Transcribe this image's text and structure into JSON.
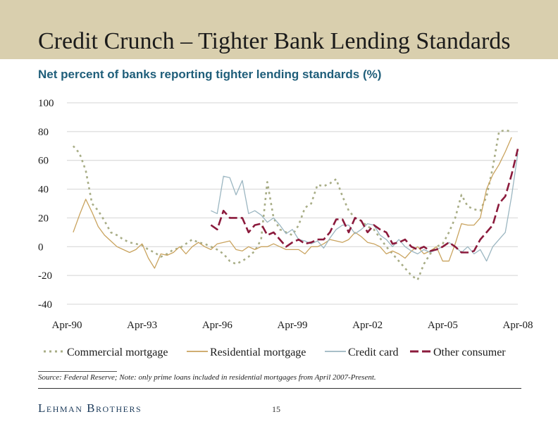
{
  "slide": {
    "title": "Credit Crunch – Tighter Bank Lending Standards",
    "subtitle": "Net percent of banks reporting tighter lending standards (%)",
    "source": "Source: Federal Reserve; Note: only prime loans included in residential mortgages from April 2007-Present.",
    "brand": "Lehman Brothers",
    "page_number": "15"
  },
  "colors": {
    "header_band": "#d9cfae",
    "commercial": "#a8ad86",
    "residential": "#c9a35e",
    "credit_card": "#9bb6c1",
    "other_consumer": "#8b1a3c"
  },
  "chart_data": {
    "type": "line",
    "title": "",
    "xlabel": "",
    "ylabel": "",
    "ylim": [
      -40,
      100
    ],
    "xlim": [
      "Apr-90",
      "Apr-08"
    ],
    "yticks": [
      "100",
      "80",
      "60",
      "40",
      "20",
      "0",
      "-20",
      "-40"
    ],
    "xticks": [
      "Apr-90",
      "Apr-93",
      "Apr-96",
      "Apr-99",
      "Apr-02",
      "Apr-05",
      "Apr-08"
    ],
    "grid": true,
    "legend_position": "bottom",
    "series": [
      {
        "name": "Commercial mortgage",
        "color": "#a8ad86",
        "dash": "dotted",
        "points": [
          [
            "Jul-90",
            70
          ],
          [
            "Oct-90",
            65
          ],
          [
            "Jan-91",
            53
          ],
          [
            "Apr-91",
            30
          ],
          [
            "Jul-91",
            25
          ],
          [
            "Oct-91",
            18
          ],
          [
            "Jan-92",
            10
          ],
          [
            "Apr-92",
            8
          ],
          [
            "Jul-92",
            5
          ],
          [
            "Oct-92",
            3
          ],
          [
            "Jan-93",
            2
          ],
          [
            "Apr-93",
            1
          ],
          [
            "Jul-93",
            -2
          ],
          [
            "Oct-93",
            -4
          ],
          [
            "Jan-94",
            -7
          ],
          [
            "Apr-94",
            -5
          ],
          [
            "Jul-94",
            -2
          ],
          [
            "Oct-94",
            -1
          ],
          [
            "Jan-95",
            2
          ],
          [
            "Apr-95",
            5
          ],
          [
            "Jul-95",
            3
          ],
          [
            "Oct-95",
            2
          ],
          [
            "Jan-96",
            0
          ],
          [
            "Apr-96",
            -2
          ],
          [
            "Jul-96",
            -5
          ],
          [
            "Oct-96",
            -10
          ],
          [
            "Jan-97",
            -12
          ],
          [
            "Apr-97",
            -10
          ],
          [
            "Jul-97",
            -7
          ],
          [
            "Oct-97",
            -3
          ],
          [
            "Jan-98",
            5
          ],
          [
            "Apr-98",
            45
          ],
          [
            "Jul-98",
            20
          ],
          [
            "Oct-98",
            12
          ],
          [
            "Jan-99",
            10
          ],
          [
            "Apr-99",
            8
          ],
          [
            "Jul-99",
            15
          ],
          [
            "Oct-99",
            27
          ],
          [
            "Jan-00",
            30
          ],
          [
            "Apr-00",
            43
          ],
          [
            "Jul-00",
            42
          ],
          [
            "Oct-00",
            44
          ],
          [
            "Jan-01",
            47
          ],
          [
            "Apr-01",
            35
          ],
          [
            "Jul-01",
            25
          ],
          [
            "Oct-01",
            20
          ],
          [
            "Jan-02",
            18
          ],
          [
            "Apr-02",
            14
          ],
          [
            "Jul-02",
            12
          ],
          [
            "Oct-02",
            6
          ],
          [
            "Jan-03",
            0
          ],
          [
            "Apr-03",
            -5
          ],
          [
            "Jul-03",
            -10
          ],
          [
            "Oct-03",
            -15
          ],
          [
            "Jan-04",
            -20
          ],
          [
            "Apr-04",
            -23
          ],
          [
            "Jul-04",
            -12
          ],
          [
            "Oct-04",
            -5
          ],
          [
            "Jan-05",
            0
          ],
          [
            "Apr-05",
            2
          ],
          [
            "Jul-05",
            10
          ],
          [
            "Oct-05",
            20
          ],
          [
            "Jan-06",
            36
          ],
          [
            "Apr-06",
            28
          ],
          [
            "Jul-06",
            26
          ],
          [
            "Oct-06",
            25
          ],
          [
            "Jan-07",
            35
          ],
          [
            "Apr-07",
            55
          ],
          [
            "Jul-07",
            80
          ],
          [
            "Oct-07",
            81
          ],
          [
            "Jan-08",
            80
          ]
        ]
      },
      {
        "name": "Residential mortgage",
        "color": "#c9a35e",
        "dash": "solid",
        "points": [
          [
            "Jul-90",
            10
          ],
          [
            "Oct-90",
            22
          ],
          [
            "Jan-91",
            33
          ],
          [
            "Apr-91",
            24
          ],
          [
            "Jul-91",
            14
          ],
          [
            "Oct-91",
            8
          ],
          [
            "Jan-92",
            4
          ],
          [
            "Apr-92",
            0
          ],
          [
            "Jul-92",
            -2
          ],
          [
            "Oct-92",
            -4
          ],
          [
            "Jan-93",
            -2
          ],
          [
            "Apr-93",
            2
          ],
          [
            "Jul-93",
            -8
          ],
          [
            "Oct-93",
            -15
          ],
          [
            "Jan-94",
            -5
          ],
          [
            "Apr-94",
            -6
          ],
          [
            "Jul-94",
            -4
          ],
          [
            "Oct-94",
            0
          ],
          [
            "Jan-95",
            -5
          ],
          [
            "Apr-95",
            0
          ],
          [
            "Jul-95",
            3
          ],
          [
            "Oct-95",
            0
          ],
          [
            "Jan-96",
            -2
          ],
          [
            "Apr-96",
            2
          ],
          [
            "Jul-96",
            3
          ],
          [
            "Oct-96",
            4
          ],
          [
            "Jan-97",
            -2
          ],
          [
            "Apr-97",
            -3
          ],
          [
            "Jul-97",
            0
          ],
          [
            "Oct-97",
            -2
          ],
          [
            "Jan-98",
            0
          ],
          [
            "Apr-98",
            0
          ],
          [
            "Jul-98",
            2
          ],
          [
            "Oct-98",
            0
          ],
          [
            "Jan-99",
            -2
          ],
          [
            "Apr-99",
            -2
          ],
          [
            "Jul-99",
            -2
          ],
          [
            "Oct-99",
            -5
          ],
          [
            "Jan-00",
            0
          ],
          [
            "Apr-00",
            0
          ],
          [
            "Jul-00",
            2
          ],
          [
            "Oct-00",
            5
          ],
          [
            "Jan-01",
            4
          ],
          [
            "Apr-01",
            3
          ],
          [
            "Jul-01",
            5
          ],
          [
            "Oct-01",
            10
          ],
          [
            "Jan-02",
            7
          ],
          [
            "Apr-02",
            3
          ],
          [
            "Jul-02",
            2
          ],
          [
            "Oct-02",
            0
          ],
          [
            "Jan-03",
            -5
          ],
          [
            "Apr-03",
            -3
          ],
          [
            "Jul-03",
            -5
          ],
          [
            "Oct-03",
            -8
          ],
          [
            "Jan-04",
            -3
          ],
          [
            "Apr-04",
            0
          ],
          [
            "Jul-04",
            -5
          ],
          [
            "Oct-04",
            -3
          ],
          [
            "Jan-05",
            0
          ],
          [
            "Apr-05",
            -10
          ],
          [
            "Jul-05",
            -10
          ],
          [
            "Oct-05",
            2
          ],
          [
            "Jan-06",
            16
          ],
          [
            "Apr-06",
            15
          ],
          [
            "Jul-06",
            15
          ],
          [
            "Oct-06",
            20
          ],
          [
            "Jan-07",
            40
          ],
          [
            "Apr-07",
            50
          ],
          [
            "Jul-07",
            57
          ],
          [
            "Oct-07",
            66
          ],
          [
            "Jan-08",
            76
          ]
        ]
      },
      {
        "name": "Credit card",
        "color": "#9bb6c1",
        "dash": "solid",
        "points": [
          [
            "Jan-96",
            25
          ],
          [
            "Apr-96",
            23
          ],
          [
            "Jul-96",
            49
          ],
          [
            "Oct-96",
            48
          ],
          [
            "Jan-97",
            36
          ],
          [
            "Apr-97",
            46
          ],
          [
            "Jul-97",
            23
          ],
          [
            "Oct-97",
            25
          ],
          [
            "Jan-98",
            22
          ],
          [
            "Apr-98",
            17
          ],
          [
            "Jul-98",
            20
          ],
          [
            "Oct-98",
            15
          ],
          [
            "Jan-99",
            9
          ],
          [
            "Apr-99",
            12
          ],
          [
            "Jul-99",
            5
          ],
          [
            "Oct-99",
            4
          ],
          [
            "Jan-00",
            2
          ],
          [
            "Apr-00",
            4
          ],
          [
            "Jul-00",
            -1
          ],
          [
            "Oct-00",
            6
          ],
          [
            "Jan-01",
            12
          ],
          [
            "Apr-01",
            15
          ],
          [
            "Jul-01",
            15
          ],
          [
            "Oct-01",
            9
          ],
          [
            "Jan-02",
            12
          ],
          [
            "Apr-02",
            16
          ],
          [
            "Jul-02",
            15
          ],
          [
            "Oct-02",
            8
          ],
          [
            "Jan-03",
            5
          ],
          [
            "Apr-03",
            0
          ],
          [
            "Jul-03",
            5
          ],
          [
            "Oct-03",
            0
          ],
          [
            "Jan-04",
            -3
          ],
          [
            "Apr-04",
            -5
          ],
          [
            "Jul-04",
            -2
          ],
          [
            "Oct-04",
            -4
          ],
          [
            "Jan-05",
            -2
          ],
          [
            "Apr-05",
            0
          ],
          [
            "Jul-05",
            3
          ],
          [
            "Oct-05",
            0
          ],
          [
            "Jan-06",
            -4
          ],
          [
            "Apr-06",
            0
          ],
          [
            "Jul-06",
            -5
          ],
          [
            "Oct-06",
            -2
          ],
          [
            "Jan-07",
            -10
          ],
          [
            "Apr-07",
            0
          ],
          [
            "Jul-07",
            5
          ],
          [
            "Oct-07",
            10
          ],
          [
            "Jan-08",
            35
          ],
          [
            "Apr-08",
            65
          ]
        ]
      },
      {
        "name": "Other consumer",
        "color": "#8b1a3c",
        "dash": "dashed",
        "points": [
          [
            "Jan-96",
            15
          ],
          [
            "Apr-96",
            12
          ],
          [
            "Jul-96",
            25
          ],
          [
            "Oct-96",
            20
          ],
          [
            "Jan-97",
            20
          ],
          [
            "Apr-97",
            20
          ],
          [
            "Jul-97",
            10
          ],
          [
            "Oct-97",
            15
          ],
          [
            "Jan-98",
            16
          ],
          [
            "Apr-98",
            8
          ],
          [
            "Jul-98",
            10
          ],
          [
            "Oct-98",
            5
          ],
          [
            "Jan-99",
            0
          ],
          [
            "Apr-99",
            3
          ],
          [
            "Jul-99",
            5
          ],
          [
            "Oct-99",
            2
          ],
          [
            "Jan-00",
            3
          ],
          [
            "Apr-00",
            5
          ],
          [
            "Jul-00",
            5
          ],
          [
            "Oct-00",
            10
          ],
          [
            "Jan-01",
            19
          ],
          [
            "Apr-01",
            19
          ],
          [
            "Jul-01",
            10
          ],
          [
            "Oct-01",
            20
          ],
          [
            "Jan-02",
            18
          ],
          [
            "Apr-02",
            10
          ],
          [
            "Jul-02",
            15
          ],
          [
            "Oct-02",
            12
          ],
          [
            "Jan-03",
            10
          ],
          [
            "Apr-03",
            2
          ],
          [
            "Jul-03",
            3
          ],
          [
            "Oct-03",
            5
          ],
          [
            "Jan-04",
            0
          ],
          [
            "Apr-04",
            -2
          ],
          [
            "Jul-04",
            0
          ],
          [
            "Oct-04",
            -3
          ],
          [
            "Jan-05",
            -2
          ],
          [
            "Apr-05",
            0
          ],
          [
            "Jul-05",
            3
          ],
          [
            "Oct-05",
            0
          ],
          [
            "Jan-06",
            -4
          ],
          [
            "Apr-06",
            -4
          ],
          [
            "Jul-06",
            -3
          ],
          [
            "Oct-06",
            5
          ],
          [
            "Jan-07",
            10
          ],
          [
            "Apr-07",
            15
          ],
          [
            "Jul-07",
            30
          ],
          [
            "Oct-07",
            35
          ],
          [
            "Jan-08",
            50
          ],
          [
            "Apr-08",
            68
          ]
        ]
      }
    ]
  }
}
